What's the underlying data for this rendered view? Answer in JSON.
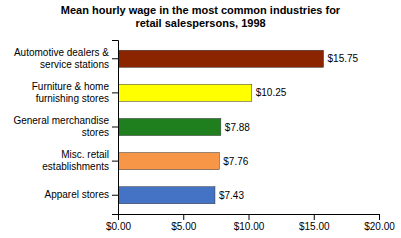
{
  "chart_data": {
    "type": "bar",
    "orientation": "horizontal",
    "title": "Mean hourly wage in the most common industries for\nretail salespersons, 1998",
    "categories": [
      "Apparel stores",
      "Misc. retail\nestablishments",
      "General merchandise\nstores",
      "Furniture & home\nfurnishing stores",
      "Automotive dealers &\nservice stations"
    ],
    "values": [
      7.43,
      7.76,
      7.88,
      10.25,
      15.75
    ],
    "value_labels": [
      "$7.43",
      "$7.76",
      "$7.88",
      "$10.25",
      "$15.75"
    ],
    "data_labels": true,
    "colors": [
      "#4472c4",
      "#f79646",
      "#1f7f1f",
      "#ffff00",
      "#8b2500"
    ],
    "xlim": [
      0,
      20
    ],
    "xticks": [
      {
        "value": 0,
        "label": "$0.00"
      },
      {
        "value": 5,
        "label": "$5.00"
      },
      {
        "value": 10,
        "label": "$10.00"
      },
      {
        "value": 15,
        "label": "$15.00"
      },
      {
        "value": 20,
        "label": "$20.00"
      }
    ],
    "grid": false
  }
}
